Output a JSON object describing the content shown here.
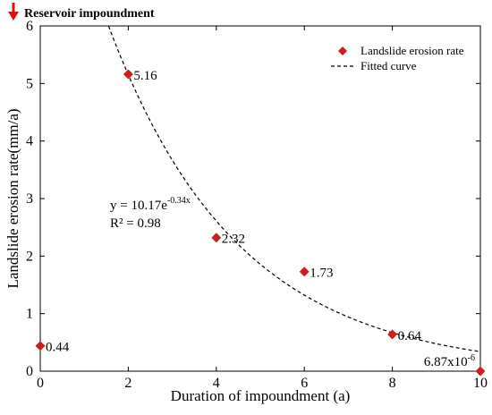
{
  "chart_data": {
    "type": "scatter",
    "xlabel": "Duration of impoundment (a)",
    "ylabel": "Landslide erosion rate(mm/a)",
    "xlim": [
      0,
      10
    ],
    "ylim": [
      0,
      6
    ],
    "xticks": [
      "0",
      "2",
      "4",
      "6",
      "8",
      "10"
    ],
    "yticks": [
      "0",
      "1",
      "2",
      "3",
      "4",
      "5",
      "6"
    ],
    "grid": false,
    "legend_position": "top-right",
    "series": [
      {
        "name": "Landslide erosion rate",
        "marker": "diamond",
        "color": "#cc1f1f",
        "points": [
          {
            "x": 0,
            "y": 0.44,
            "label": "0.44"
          },
          {
            "x": 2,
            "y": 5.16,
            "label": "5.16"
          },
          {
            "x": 4,
            "y": 2.32,
            "label": "2.32"
          },
          {
            "x": 6,
            "y": 1.73,
            "label": "1.73"
          },
          {
            "x": 8,
            "y": 0.64,
            "label": "0.64"
          },
          {
            "x": 10,
            "y": 6.87e-06,
            "label": "6.87x10",
            "label_sup": "-6"
          }
        ]
      },
      {
        "name": "Fitted curve",
        "style": "dashed",
        "color": "#000000",
        "equation": {
          "a": 10.17,
          "b": -0.34
        }
      }
    ],
    "annotations": {
      "equation_main": "y = 10.17e",
      "equation_sup": "-0.34x",
      "r_squared": "R² = 0.98",
      "marker_text": "Reservoir impoundment",
      "marker_color": "#e01010"
    }
  }
}
